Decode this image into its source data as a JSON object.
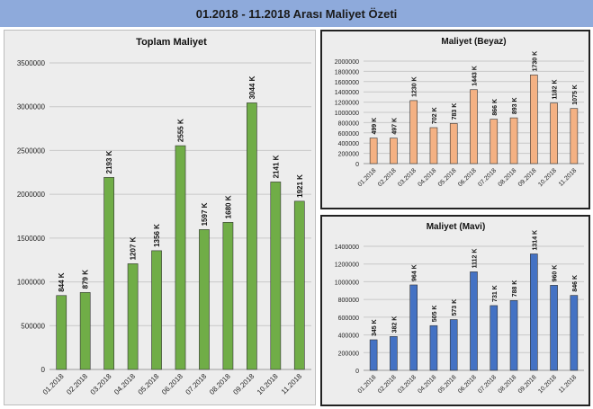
{
  "header": {
    "title": "01.2018 - 11.2018 Arası Maliyet Özeti"
  },
  "chart_data": [
    {
      "type": "bar",
      "title": "Toplam Maliyet",
      "categories": [
        "01.2018",
        "02.2018",
        "03.2018",
        "04.2018",
        "05.2018",
        "06.2018",
        "07.2018",
        "08.2018",
        "09.2018",
        "10.2018",
        "11.2018"
      ],
      "values": [
        844000,
        879000,
        2193000,
        1207000,
        1356000,
        2555000,
        1597000,
        1680000,
        3044000,
        2141000,
        1921000
      ],
      "data_labels": [
        "844 K",
        "879 K",
        "2193 K",
        "1207 K",
        "1356 K",
        "2555 K",
        "1597 K",
        "1680 K",
        "3044 K",
        "2141 K",
        "1921 K"
      ],
      "ylim": [
        0,
        3500000
      ],
      "yticks": [
        0,
        500000,
        1000000,
        1500000,
        2000000,
        2500000,
        3000000,
        3500000
      ],
      "grid": true,
      "color": "#70ad47"
    },
    {
      "type": "bar",
      "title": "Maliyet (Beyaz)",
      "categories": [
        "01.2018",
        "02.2018",
        "03.2018",
        "04.2018",
        "05.2018",
        "06.2018",
        "07.2018",
        "08.2018",
        "09.2018",
        "10.2018",
        "11.2018"
      ],
      "values": [
        499000,
        497000,
        1230000,
        702000,
        783000,
        1443000,
        866000,
        893000,
        1730000,
        1182000,
        1075000
      ],
      "data_labels": [
        "499 K",
        "497 K",
        "1230 K",
        "702 K",
        "783 K",
        "1443 K",
        "866 K",
        "893 K",
        "1730 K",
        "1182 K",
        "1075 K"
      ],
      "ylim": [
        0,
        2000000
      ],
      "yticks": [
        0,
        200000,
        400000,
        600000,
        800000,
        1000000,
        1200000,
        1400000,
        1600000,
        1800000,
        2000000
      ],
      "grid": true,
      "color": "#f4b183"
    },
    {
      "type": "bar",
      "title": "Maliyet (Mavi)",
      "categories": [
        "01.2018",
        "02.2018",
        "03.2018",
        "04.2018",
        "05.2018",
        "06.2018",
        "07.2018",
        "08.2018",
        "09.2018",
        "10.2018",
        "11.2018"
      ],
      "values": [
        345000,
        382000,
        964000,
        505000,
        573000,
        1112000,
        731000,
        788000,
        1314000,
        960000,
        846000
      ],
      "data_labels": [
        "345 K",
        "382 K",
        "964 K",
        "505 K",
        "573 K",
        "1112 K",
        "731 K",
        "788 K",
        "1314 K",
        "960 K",
        "846 K"
      ],
      "ylim": [
        0,
        1400000
      ],
      "yticks": [
        0,
        200000,
        400000,
        600000,
        800000,
        1000000,
        1200000,
        1400000
      ],
      "grid": true,
      "color": "#4472c4"
    }
  ]
}
